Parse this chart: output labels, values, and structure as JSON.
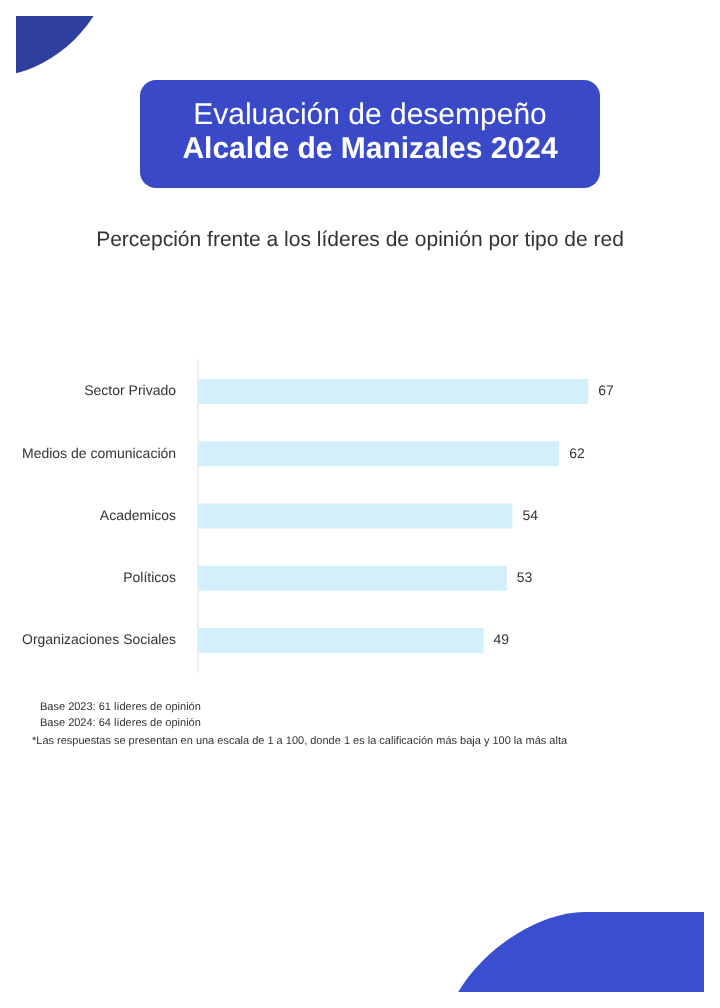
{
  "chart_data": {
    "type": "bar",
    "orientation": "horizontal",
    "title": "Evaluación de desempeño\nAlcalde de Manizales 2024",
    "subtitle": "Percepción frente a los líderes de opinión por tipo de red",
    "categories": [
      "Sector Privado",
      "Medios de comunicación",
      "Academicos",
      "Políticos",
      "Organizaciones Sociales"
    ],
    "values": [
      67,
      62,
      54,
      53,
      49
    ],
    "color": "#d3effc",
    "data_labels": true,
    "tick_labels": "y",
    "annotations": [
      "Base 2023: 61 líderes de opinión",
      "Base 2024: 64 líderes de opinión",
      "*Las respuestas se presentan en una escala de 1 a 100, donde 1 es la calificación más baja y 100 la más alta"
    ]
  }
}
